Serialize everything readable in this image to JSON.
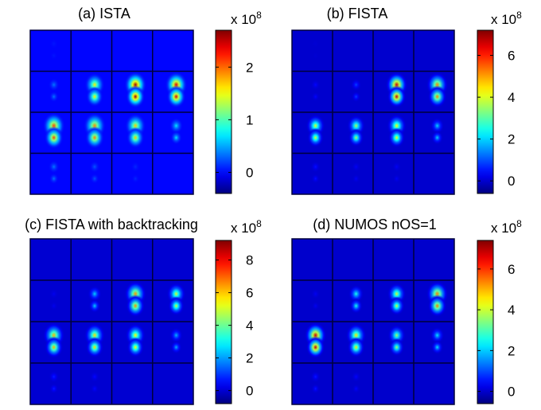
{
  "figure": {
    "colormap": "jet",
    "grid": "4x4 image montage per panel"
  },
  "chart_data": [
    {
      "type": "heatmap",
      "title": "(a) ISTA",
      "colorbar": {
        "ticks": [
          0,
          1,
          2
        ],
        "tick_labels": [
          "0",
          "1",
          "2"
        ],
        "range": [
          -0.4,
          2.7
        ],
        "multiplier": "x 10",
        "exponent": "8"
      },
      "tile_peaks": [
        [
          0.05,
          0.0,
          0.0,
          0.0
        ],
        [
          0.35,
          1.6,
          2.6,
          2.4
        ],
        [
          2.1,
          1.9,
          1.7,
          0.7
        ],
        [
          0.35,
          0.25,
          0.1,
          0.0
        ]
      ]
    },
    {
      "type": "heatmap",
      "title": "(b) FISTA",
      "colorbar": {
        "ticks": [
          0,
          2,
          4,
          6
        ],
        "tick_labels": [
          "0",
          "2",
          "4",
          "6"
        ],
        "range": [
          -0.6,
          7.2
        ],
        "multiplier": "x 10",
        "exponent": "8"
      },
      "tile_peaks": [
        [
          0.05,
          0.0,
          0.0,
          0.0
        ],
        [
          0.4,
          0.9,
          6.6,
          5.2
        ],
        [
          4.0,
          3.6,
          4.2,
          2.0
        ],
        [
          0.5,
          0.3,
          0.3,
          0.0
        ]
      ]
    },
    {
      "type": "heatmap",
      "title": "(c) FISTA with backtracking",
      "colorbar": {
        "ticks": [
          0,
          2,
          4,
          6,
          8
        ],
        "tick_labels": [
          "0",
          "2",
          "4",
          "6",
          "8"
        ],
        "range": [
          -0.8,
          9.2
        ],
        "multiplier": "x 10",
        "exponent": "8"
      },
      "tile_peaks": [
        [
          0.0,
          0.0,
          0.0,
          0.0
        ],
        [
          0.3,
          2.5,
          6.5,
          5.0
        ],
        [
          6.2,
          5.8,
          5.5,
          2.2
        ],
        [
          0.8,
          0.5,
          0.0,
          0.0
        ]
      ]
    },
    {
      "type": "heatmap",
      "title": "(d) NUMOS nOS=1",
      "colorbar": {
        "ticks": [
          0,
          2,
          4,
          6
        ],
        "tick_labels": [
          "0",
          "2",
          "4",
          "6"
        ],
        "range": [
          -0.6,
          7.4
        ],
        "multiplier": "x 10",
        "exponent": "8"
      },
      "tile_peaks": [
        [
          0.0,
          0.0,
          0.0,
          0.0
        ],
        [
          0.3,
          2.6,
          4.0,
          5.4
        ],
        [
          6.8,
          4.6,
          3.6,
          2.2
        ],
        [
          0.6,
          0.4,
          0.0,
          0.0
        ]
      ]
    }
  ]
}
